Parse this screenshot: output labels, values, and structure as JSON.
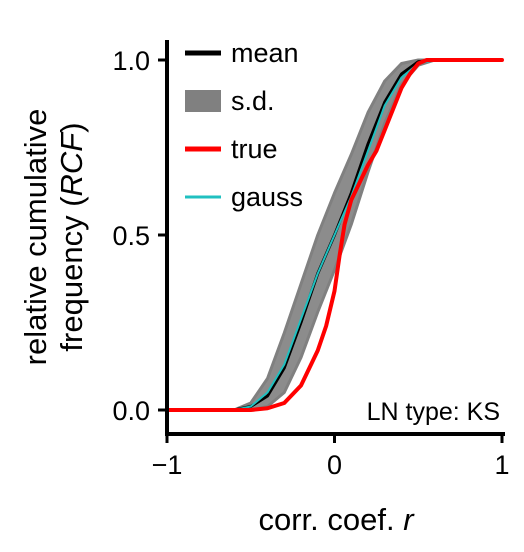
{
  "chart_data": {
    "type": "line",
    "xlabel": "corr. coef. ",
    "xlabel_italic": "r",
    "ylabel_line1": "relative cumulative",
    "ylabel_line2_prefix": "frequency (",
    "ylabel_line2_italic": "RCF",
    "ylabel_line2_suffix": ")",
    "xlim": [
      -1,
      1
    ],
    "ylim": [
      0,
      1
    ],
    "xticks": [
      {
        "value": -1,
        "label": "−1"
      },
      {
        "value": 0,
        "label": "0"
      },
      {
        "value": 1,
        "label": "1"
      }
    ],
    "yticks": [
      {
        "value": 0,
        "label": "0.0"
      },
      {
        "value": 0.5,
        "label": "0.5"
      },
      {
        "value": 1,
        "label": "1.0"
      }
    ],
    "grid": false,
    "legend_position": "top-left",
    "annotation": "LN type: KS",
    "series": [
      {
        "name": "mean",
        "kind": "line",
        "color": "#000000",
        "x": [
          -1,
          -0.6,
          -0.5,
          -0.4,
          -0.3,
          -0.2,
          -0.1,
          0,
          0.1,
          0.2,
          0.3,
          0.4,
          0.5,
          0.6,
          1
        ],
        "y": [
          0,
          0,
          0.01,
          0.04,
          0.12,
          0.25,
          0.39,
          0.5,
          0.62,
          0.76,
          0.88,
          0.96,
          0.995,
          1,
          1
        ]
      },
      {
        "name": "s.d.",
        "kind": "band",
        "color": "#808080",
        "x": [
          -1,
          -0.6,
          -0.5,
          -0.4,
          -0.3,
          -0.2,
          -0.1,
          0,
          0.1,
          0.2,
          0.3,
          0.4,
          0.5,
          0.6,
          1
        ],
        "lower": [
          0,
          0,
          0,
          0.01,
          0.05,
          0.15,
          0.28,
          0.4,
          0.53,
          0.68,
          0.82,
          0.93,
          0.985,
          1,
          1
        ],
        "upper": [
          0,
          0,
          0.02,
          0.09,
          0.22,
          0.36,
          0.5,
          0.62,
          0.73,
          0.85,
          0.94,
          0.99,
          1,
          1,
          1
        ]
      },
      {
        "name": "true",
        "kind": "line",
        "color": "#ff0000",
        "x": [
          -1,
          -0.6,
          -0.5,
          -0.4,
          -0.3,
          -0.2,
          -0.15,
          -0.1,
          -0.05,
          0,
          0.03,
          0.06,
          0.1,
          0.13,
          0.16,
          0.2,
          0.25,
          0.3,
          0.35,
          0.4,
          0.45,
          0.5,
          0.55,
          0.6,
          1
        ],
        "y": [
          0,
          0,
          0,
          0.005,
          0.02,
          0.07,
          0.12,
          0.17,
          0.24,
          0.34,
          0.44,
          0.53,
          0.6,
          0.63,
          0.66,
          0.7,
          0.74,
          0.8,
          0.86,
          0.92,
          0.96,
          0.99,
          1,
          1,
          1
        ]
      },
      {
        "name": "gauss",
        "kind": "line",
        "color": "#20c0c0",
        "x": [
          -1,
          -0.6,
          -0.5,
          -0.4,
          -0.3,
          -0.2,
          -0.1,
          0,
          0.1,
          0.2,
          0.3,
          0.4,
          0.5,
          0.6,
          1
        ],
        "y": [
          0,
          0,
          0.01,
          0.05,
          0.13,
          0.26,
          0.39,
          0.5,
          0.61,
          0.74,
          0.87,
          0.95,
          0.99,
          1,
          1
        ]
      }
    ]
  }
}
